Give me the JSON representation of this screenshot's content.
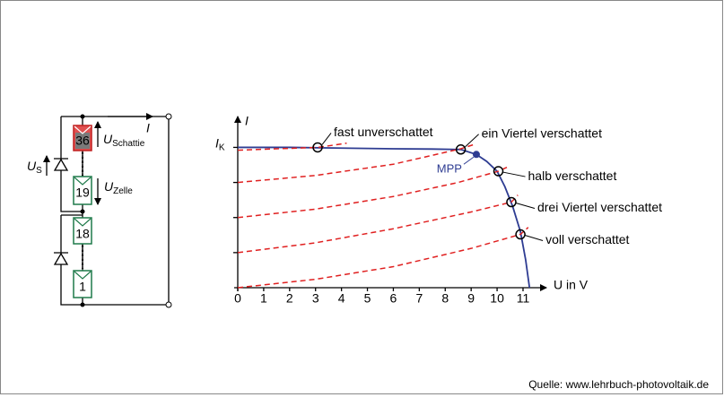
{
  "chart_data": {
    "type": "line",
    "ylabel": "I",
    "xlabel": "U in V",
    "xlim": [
      0,
      11.9
    ],
    "ylim": [
      0,
      1.22
    ],
    "xticks": [
      0,
      1,
      2,
      3,
      4,
      5,
      6,
      7,
      8,
      9,
      10,
      11
    ],
    "yticks": [
      {
        "value": 1,
        "label": "I",
        "sub": "K"
      }
    ],
    "ytick_marks": [
      0.25,
      0.5,
      0.75
    ],
    "series": [
      {
        "color": "#2e3c92",
        "style": "solid",
        "x": [
          0,
          2,
          4,
          6,
          7.5,
          8.6,
          9.2,
          9.6,
          10,
          10.3,
          10.6,
          10.9,
          11.1,
          11.25
        ],
        "values": [
          1,
          1,
          0.995,
          0.99,
          0.988,
          0.985,
          0.95,
          0.9,
          0.83,
          0.72,
          0.58,
          0.4,
          0.2,
          0
        ]
      },
      {
        "color": "#e02020",
        "style": "dashed",
        "x": [
          0,
          1.5,
          3.1,
          4.2
        ],
        "values": [
          0.98,
          0.99,
          1.0,
          1.03
        ]
      },
      {
        "color": "#e02020",
        "style": "dashed",
        "x": [
          0,
          3,
          6,
          8.6,
          9.1
        ],
        "values": [
          0.75,
          0.8,
          0.88,
          0.99,
          1.02
        ]
      },
      {
        "color": "#e02020",
        "style": "dashed",
        "x": [
          0,
          3,
          6,
          8.5,
          10.05,
          10.4
        ],
        "values": [
          0.5,
          0.56,
          0.65,
          0.75,
          0.83,
          0.86
        ]
      },
      {
        "color": "#e02020",
        "style": "dashed",
        "x": [
          0,
          3,
          6,
          9,
          10.55,
          10.8
        ],
        "values": [
          0.25,
          0.32,
          0.42,
          0.54,
          0.61,
          0.66
        ]
      },
      {
        "color": "#e02020",
        "style": "dashed",
        "x": [
          0,
          3,
          6,
          9,
          10.9,
          11.2
        ],
        "values": [
          0,
          0.06,
          0.15,
          0.28,
          0.38,
          0.43
        ]
      }
    ],
    "operating_points": [
      {
        "label": "fast unverschattet",
        "x": 3.08,
        "y": 1.0
      },
      {
        "label": "ein Viertel verschattet",
        "x": 8.6,
        "y": 0.985
      },
      {
        "label": "halb verschattet",
        "x": 10.05,
        "y": 0.83
      },
      {
        "label": "drei Viertel verschattet",
        "x": 10.55,
        "y": 0.61
      },
      {
        "label": "voll verschattet",
        "x": 10.9,
        "y": 0.38
      }
    ],
    "mpp": {
      "label": "MPP",
      "x": 9.2,
      "y": 0.95,
      "color": "#2e3c92"
    }
  },
  "circuit": {
    "cells": [
      "36",
      "19",
      "18",
      "1"
    ],
    "current": "I",
    "u_s": {
      "main": "U",
      "sub": "S"
    },
    "u_shaded": {
      "main": "U",
      "sub": "Schattie"
    },
    "u_cell": {
      "main": "U",
      "sub": "Zelle"
    }
  },
  "source": "Quelle: www.lehrbuch-photovoltaik.de"
}
